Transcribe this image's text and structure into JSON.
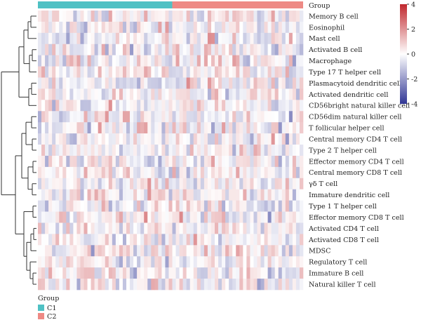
{
  "chart_data": {
    "type": "heatmap",
    "annotation_label": "Group",
    "groups": [
      {
        "name": "C1",
        "color": "#4FC1C4",
        "count": 38
      },
      {
        "name": "C2",
        "color": "#EE8A85",
        "count": 37
      }
    ],
    "rows": [
      "Memory B cell",
      "Eosinophil",
      "Mast cell",
      "Activated B cell",
      "Macrophage",
      "Type 17 T helper cell",
      "Plasmacytoid dendritic cell",
      "Activated dendritic cell",
      "CD56bright natural killer cell",
      "CD56dim natural killer cell",
      "T follicular helper cell",
      "Central memory CD4 T cell",
      "Type 2 T helper cell",
      "Effector memory CD4 T cell",
      "Central memory CD8 T cell",
      "γδ T cell",
      "Immature dendritic cell",
      "Type 1 T helper cell",
      "Effector memory CD8 T cell",
      "Activated CD4 T cell",
      "Activated CD8 T cell",
      "MDSC",
      "Regulatory T cell",
      "Immature B cell",
      "Natural killer T cell"
    ],
    "color_scale": {
      "min": -4,
      "max": 4,
      "ticks": [
        4,
        2,
        0,
        -2,
        -4
      ],
      "low_color": "#313695",
      "mid_color": "#FFFFFF",
      "high_color": "#C0282E"
    },
    "legend": {
      "title": "Group",
      "entries": [
        {
          "label": "C1",
          "color": "#4FC1C4"
        },
        {
          "label": "C2",
          "color": "#EE8A85"
        }
      ]
    }
  }
}
